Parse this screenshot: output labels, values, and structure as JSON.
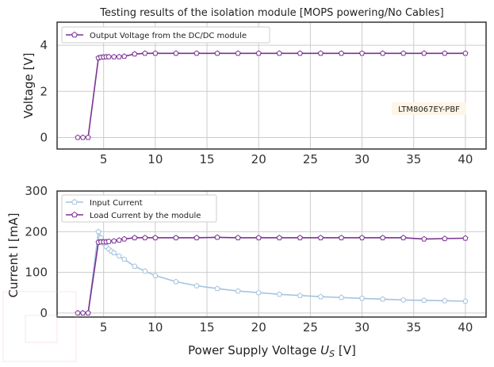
{
  "chart_data": [
    {
      "type": "line",
      "title": "Testing results  of the isolation module [MOPS powering/No Cables]",
      "xlabel": "",
      "ylabel": "Voltage [V]",
      "xlim": [
        0.5,
        42
      ],
      "ylim": [
        -0.5,
        5
      ],
      "xticks": [
        5,
        10,
        15,
        20,
        25,
        30,
        35,
        40
      ],
      "yticks": [
        0,
        2,
        4
      ],
      "grid": true,
      "legend_position": "upper left",
      "annotation": "LTM8067EY-PBF",
      "series": [
        {
          "name": "Output Voltage from the DC/DC module",
          "color": "#7b3294",
          "x": [
            2.5,
            3.0,
            3.5,
            4.5,
            4.75,
            5.0,
            5.25,
            5.5,
            6.0,
            6.5,
            7.0,
            8.0,
            9.0,
            10.0,
            12.0,
            14.0,
            16.0,
            18.0,
            20.0,
            22.0,
            24.0,
            26.0,
            28.0,
            30.0,
            32.0,
            34.0,
            36.0,
            38.0,
            40.0
          ],
          "y": [
            0.0,
            0.0,
            0.0,
            3.45,
            3.48,
            3.49,
            3.5,
            3.5,
            3.5,
            3.5,
            3.52,
            3.62,
            3.65,
            3.65,
            3.65,
            3.65,
            3.65,
            3.65,
            3.65,
            3.65,
            3.65,
            3.65,
            3.65,
            3.65,
            3.65,
            3.65,
            3.65,
            3.65,
            3.65
          ]
        }
      ]
    },
    {
      "type": "line",
      "title": "",
      "xlabel": "Power Supply Voltage U_S [V]",
      "ylabel": "Current I [mA]",
      "xlim": [
        0.5,
        42
      ],
      "ylim": [
        -10,
        300
      ],
      "xticks": [
        5,
        10,
        15,
        20,
        25,
        30,
        35,
        40
      ],
      "yticks": [
        0,
        100,
        200,
        300
      ],
      "grid": true,
      "legend_position": "upper left",
      "series": [
        {
          "name": "Input Current",
          "color": "#a6c3e0",
          "x": [
            2.5,
            3.0,
            3.5,
            4.5,
            4.75,
            5.0,
            5.25,
            5.5,
            5.75,
            6.0,
            6.5,
            7.0,
            8.0,
            9.0,
            10.0,
            12.0,
            14.0,
            16.0,
            18.0,
            20.0,
            22.0,
            24.0,
            26.0,
            28.0,
            30.0,
            32.0,
            34.0,
            36.0,
            38.0,
            40.0
          ],
          "y": [
            0,
            0,
            0,
            200,
            185,
            172,
            163,
            157,
            152,
            148,
            140,
            132,
            115,
            103,
            92,
            77,
            67,
            60,
            54,
            50,
            46,
            43,
            40,
            38,
            36,
            34,
            32,
            31,
            30,
            29
          ]
        },
        {
          "name": "Load Current by the module",
          "color": "#7b3294",
          "x": [
            2.5,
            3.0,
            3.5,
            4.5,
            4.75,
            5.0,
            5.25,
            5.5,
            6.0,
            6.5,
            7.0,
            8.0,
            9.0,
            10.0,
            12.0,
            14.0,
            16.0,
            18.0,
            20.0,
            22.0,
            24.0,
            26.0,
            28.0,
            30.0,
            32.0,
            34.0,
            36.0,
            38.0,
            40.0
          ],
          "y": [
            0,
            0,
            0,
            174,
            175,
            175,
            175,
            176,
            177,
            179,
            182,
            185,
            185,
            185,
            185,
            185,
            186,
            185,
            185,
            185,
            185,
            185,
            185,
            185,
            185,
            185,
            182,
            183,
            184
          ]
        }
      ]
    }
  ],
  "colors": {
    "accent": "#7b3294",
    "light": "#a6c3e0",
    "annotation_bg": "#fdf5e6"
  }
}
